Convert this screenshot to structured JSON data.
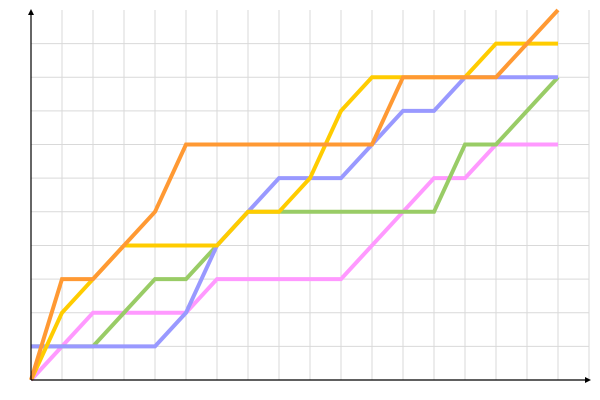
{
  "chart_data": {
    "type": "line",
    "title": "",
    "xlabel": "",
    "ylabel": "",
    "xlim": [
      0,
      18
    ],
    "ylim": [
      0,
      11
    ],
    "grid": true,
    "legend": "none",
    "x": [
      0,
      1,
      2,
      3,
      4,
      5,
      6,
      7,
      8,
      9,
      10,
      11,
      12,
      13,
      14,
      15,
      16,
      17
    ],
    "series": [
      {
        "color": "#ff99ff",
        "values": [
          0,
          1,
          2,
          2,
          2,
          2,
          3,
          3,
          3,
          3,
          3,
          4,
          5,
          6,
          6,
          7,
          7,
          7
        ]
      },
      {
        "color": "#99cc66",
        "values": [
          1,
          1,
          1,
          2,
          3,
          3,
          4,
          5,
          5,
          5,
          5,
          5,
          5,
          5,
          7,
          7,
          8,
          9
        ]
      },
      {
        "color": "#9999ff",
        "values": [
          1,
          1,
          1,
          1,
          1,
          2,
          4,
          5,
          6,
          6,
          6,
          7,
          8,
          8,
          9,
          9,
          9,
          9
        ]
      },
      {
        "color": "#ffcc00",
        "values": [
          0,
          2,
          3,
          4,
          4,
          4,
          4,
          5,
          5,
          6,
          8,
          9,
          9,
          9,
          9,
          10,
          10,
          10
        ]
      },
      {
        "color": "#ff9933",
        "values": [
          0,
          3,
          3,
          4,
          5,
          7,
          7,
          7,
          7,
          7,
          7,
          7,
          9,
          9,
          9,
          9,
          10,
          11
        ]
      }
    ]
  }
}
